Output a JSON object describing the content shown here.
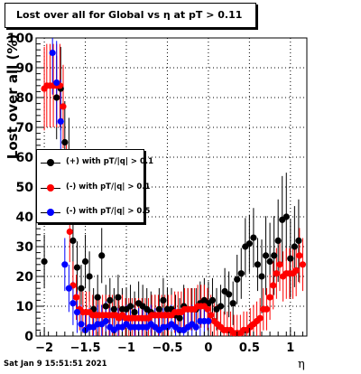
{
  "footer": {
    "timestamp": "Sat Jan  9 15:51:51 2021"
  },
  "chart_data": {
    "type": "scatter",
    "title": "Lost over all for Global vs  η at pT > 0.11",
    "xlabel": "η",
    "ylabel": "Lost over all (%)",
    "xlim": [
      -2.1,
      1.2
    ],
    "ylim": [
      0,
      100
    ],
    "x_ticks": [
      -2,
      -1.5,
      -1,
      -0.5,
      0,
      0.5,
      1
    ],
    "x_tick_labels": [
      "−2",
      "−1.5",
      "−1",
      "−0.5",
      "0",
      "0.5",
      "1"
    ],
    "y_ticks": [
      0,
      10,
      20,
      30,
      40,
      50,
      60,
      70,
      80,
      90,
      100
    ],
    "y_tick_labels": [
      "0",
      "10",
      "20",
      "30",
      "40",
      "50",
      "60",
      "70",
      "80",
      "90",
      "100"
    ],
    "grid": true,
    "legend_position": "left-middle",
    "series": [
      {
        "name": "(+) with pT/|q| > 0.1",
        "color": "#000000",
        "x": [
          -2.0,
          -1.85,
          -1.8,
          -1.75,
          -1.7,
          -1.65,
          -1.6,
          -1.55,
          -1.5,
          -1.45,
          -1.4,
          -1.35,
          -1.3,
          -1.25,
          -1.2,
          -1.15,
          -1.1,
          -1.05,
          -1.0,
          -0.95,
          -0.9,
          -0.85,
          -0.8,
          -0.75,
          -0.7,
          -0.65,
          -0.6,
          -0.55,
          -0.5,
          -0.45,
          -0.4,
          -0.35,
          -0.3,
          -0.25,
          -0.2,
          -0.15,
          -0.1,
          -0.05,
          0.0,
          0.05,
          0.1,
          0.15,
          0.2,
          0.25,
          0.3,
          0.35,
          0.4,
          0.45,
          0.5,
          0.55,
          0.6,
          0.65,
          0.7,
          0.75,
          0.8,
          0.85,
          0.9,
          0.95,
          1.0,
          1.05,
          1.1
        ],
        "y": [
          25,
          80,
          83,
          65,
          60,
          32,
          23,
          16,
          25,
          20,
          9,
          13,
          27,
          10,
          12,
          9,
          13,
          9,
          9,
          10,
          8,
          11,
          10,
          9,
          8,
          7,
          9,
          12,
          9,
          9,
          7,
          6,
          10,
          9,
          9,
          9,
          11,
          12,
          11,
          12,
          9,
          10,
          15,
          14,
          11,
          19,
          21,
          30,
          31,
          33,
          24,
          20,
          27,
          25,
          27,
          32,
          39,
          40,
          26,
          30,
          32
        ]
      },
      {
        "name": "(-) with pT/|q| > 0.1",
        "color": "#ff0000",
        "x": [
          -2.0,
          -1.97,
          -1.93,
          -1.89,
          -1.85,
          -1.81,
          -1.77,
          -1.73,
          -1.69,
          -1.65,
          -1.61,
          -1.57,
          -1.53,
          -1.49,
          -1.45,
          -1.41,
          -1.37,
          -1.33,
          -1.29,
          -1.25,
          -1.21,
          -1.17,
          -1.13,
          -1.09,
          -1.05,
          -1.01,
          -0.97,
          -0.93,
          -0.89,
          -0.85,
          -0.81,
          -0.77,
          -0.73,
          -0.69,
          -0.65,
          -0.61,
          -0.57,
          -0.53,
          -0.49,
          -0.45,
          -0.41,
          -0.37,
          -0.33,
          -0.29,
          -0.25,
          -0.21,
          -0.17,
          -0.13,
          -0.09,
          -0.05,
          -0.01,
          0.03,
          0.07,
          0.11,
          0.15,
          0.19,
          0.23,
          0.27,
          0.31,
          0.35,
          0.39,
          0.43,
          0.47,
          0.51,
          0.55,
          0.59,
          0.63,
          0.67,
          0.71,
          0.75,
          0.79,
          0.83,
          0.87,
          0.91,
          0.95,
          0.99,
          1.03,
          1.07,
          1.11,
          1.15
        ],
        "y": [
          83,
          84,
          84,
          84,
          84,
          84,
          77,
          52,
          35,
          17,
          13,
          9,
          8,
          8,
          8,
          7,
          7,
          7,
          7,
          7,
          7,
          7,
          7,
          6,
          7,
          6,
          6,
          6,
          6,
          6,
          6,
          6,
          6,
          7,
          7,
          7,
          7,
          7,
          7,
          7,
          8,
          8,
          8,
          9,
          9,
          9,
          9,
          10,
          10,
          10,
          9,
          7,
          5,
          4,
          3,
          2,
          2,
          2,
          1,
          1,
          1,
          2,
          2,
          3,
          4,
          5,
          6,
          9,
          9,
          13,
          17,
          21,
          24,
          20,
          21,
          21,
          21,
          22,
          27,
          24
        ]
      },
      {
        "name": "(-) with pT/|q| > 0.5",
        "color": "#0000ff",
        "x": [
          -1.9,
          -1.85,
          -1.8,
          -1.75,
          -1.7,
          -1.65,
          -1.6,
          -1.55,
          -1.5,
          -1.45,
          -1.4,
          -1.35,
          -1.3,
          -1.25,
          -1.2,
          -1.15,
          -1.1,
          -1.05,
          -1.0,
          -0.95,
          -0.9,
          -0.85,
          -0.8,
          -0.75,
          -0.7,
          -0.65,
          -0.6,
          -0.55,
          -0.5,
          -0.45,
          -0.4,
          -0.35,
          -0.3,
          -0.25,
          -0.2,
          -0.15,
          -0.1,
          -0.05,
          0.0
        ],
        "y": [
          95,
          85,
          72,
          24,
          16,
          11,
          8,
          4,
          2,
          3,
          3,
          4,
          4,
          5,
          3,
          2,
          3,
          3,
          4,
          3,
          3,
          3,
          3,
          3,
          4,
          3,
          2,
          3,
          3,
          4,
          3,
          2,
          2,
          3,
          4,
          3,
          5,
          5,
          5
        ]
      }
    ]
  }
}
